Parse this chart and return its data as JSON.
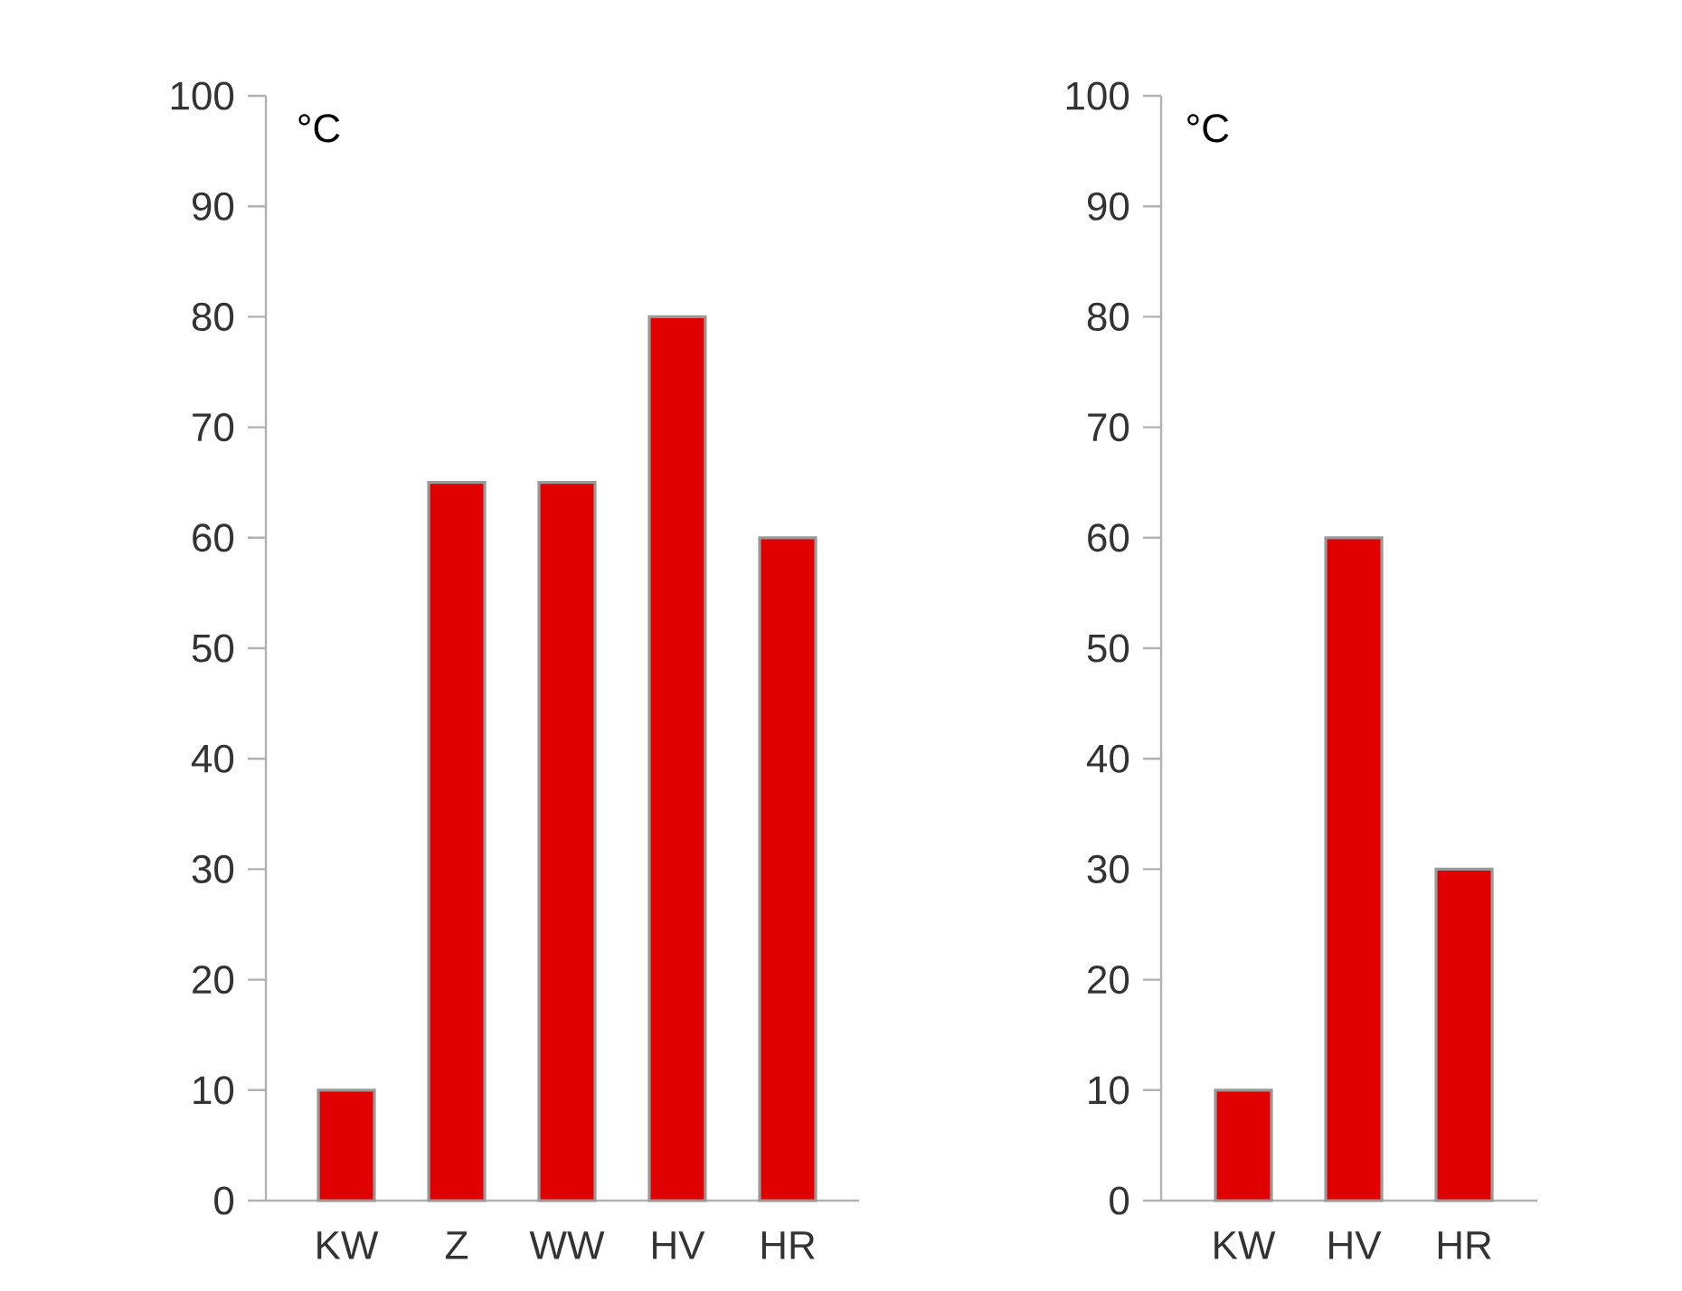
{
  "chart_data": [
    {
      "type": "bar",
      "ylabel": "°C",
      "categories": [
        "KW",
        "Z",
        "WW",
        "HV",
        "HR"
      ],
      "values": [
        10,
        65,
        65,
        80,
        60
      ],
      "color": "#e00000",
      "ylim": [
        0,
        100
      ],
      "yticks": [
        0,
        10,
        20,
        30,
        40,
        50,
        60,
        70,
        80,
        90,
        100
      ]
    },
    {
      "type": "bar",
      "ylabel": "°C",
      "categories": [
        "KW",
        "HV",
        "HR"
      ],
      "values": [
        10,
        60,
        30
      ],
      "color": "#e00000",
      "ylim": [
        0,
        100
      ],
      "yticks": [
        0,
        10,
        20,
        30,
        40,
        50,
        60,
        70,
        80,
        90,
        100
      ]
    }
  ]
}
